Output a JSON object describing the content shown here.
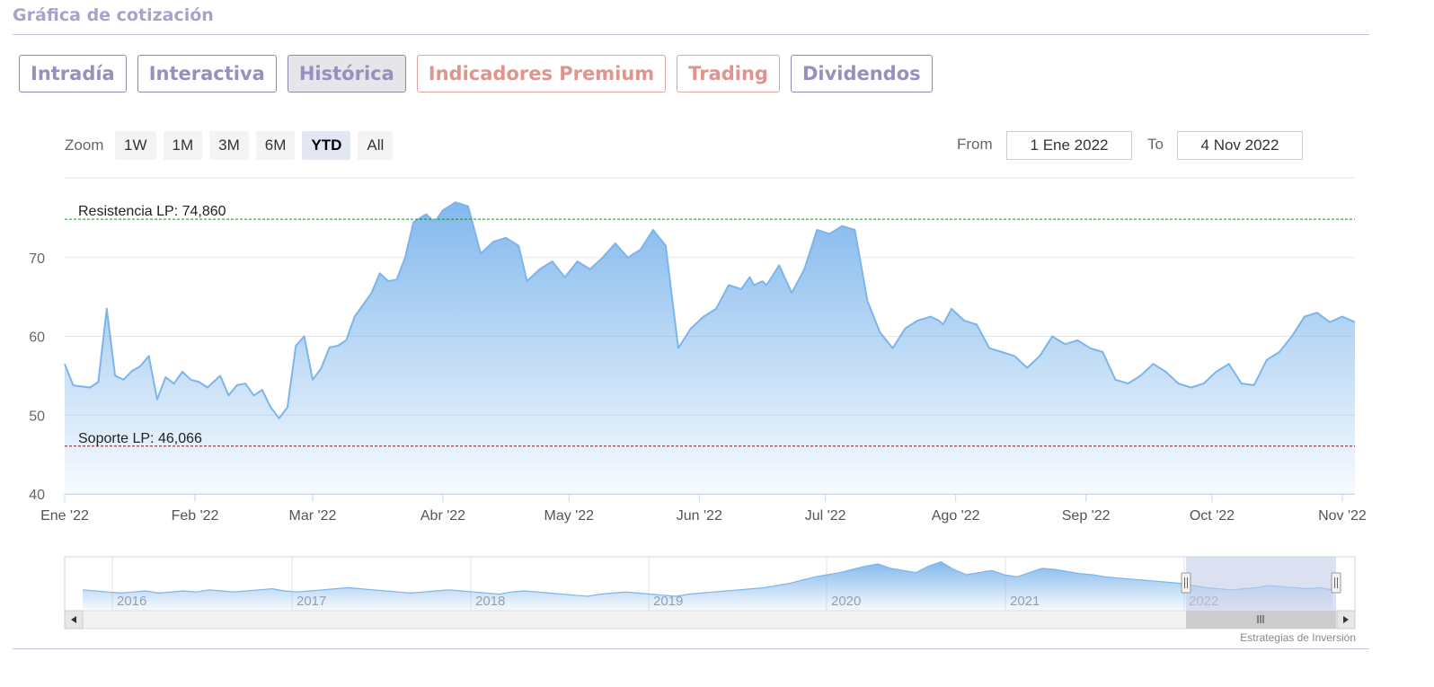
{
  "header": {
    "title": "Gráfica de cotización"
  },
  "tabs": [
    {
      "label": "Intradía",
      "style": "normal"
    },
    {
      "label": "Interactiva",
      "style": "normal"
    },
    {
      "label": "Histórica",
      "style": "active"
    },
    {
      "label": "Indicadores Premium",
      "style": "premium"
    },
    {
      "label": "Trading",
      "style": "premium"
    },
    {
      "label": "Dividendos",
      "style": "normal"
    }
  ],
  "zoom": {
    "label": "Zoom",
    "buttons": [
      "1W",
      "1M",
      "3M",
      "6M",
      "YTD",
      "All"
    ],
    "selected": "YTD"
  },
  "range": {
    "from_label": "From",
    "from_value": "1 Ene 2022",
    "to_label": "To",
    "to_value": "4 Nov 2022"
  },
  "colors": {
    "line": "#7cb5ec",
    "resistance": "#1a8a1a",
    "support": "#8b1a1a",
    "tab_text": "#9590bd",
    "premium_text": "#df958e",
    "navigator_mask": "#c5cde8"
  },
  "chart_data": {
    "type": "area",
    "x_start": "2022-01-01",
    "x_end": "2022-11-04",
    "ylim": [
      40,
      80
    ],
    "yticks": [
      40,
      50,
      60,
      70
    ],
    "ytick_labels": [
      "40",
      "50",
      "60",
      "70"
    ],
    "xtick_labels": [
      {
        "date": "2022-01-01",
        "label": "Ene '22"
      },
      {
        "date": "2022-02-01",
        "label": "Feb '22"
      },
      {
        "date": "2022-03-01",
        "label": "Mar '22"
      },
      {
        "date": "2022-04-01",
        "label": "Abr '22"
      },
      {
        "date": "2022-05-01",
        "label": "May '22"
      },
      {
        "date": "2022-06-01",
        "label": "Jun '22"
      },
      {
        "date": "2022-07-01",
        "label": "Jul '22"
      },
      {
        "date": "2022-08-01",
        "label": "Ago '22"
      },
      {
        "date": "2022-09-01",
        "label": "Sep '22"
      },
      {
        "date": "2022-10-01",
        "label": "Oct '22"
      },
      {
        "date": "2022-11-01",
        "label": "Nov '22"
      }
    ],
    "plot_lines": [
      {
        "label": "Resistencia LP: 74,860",
        "value": 74.86,
        "color": "#1a8a1a"
      },
      {
        "label": "Soporte LP: 46,066",
        "value": 46.066,
        "color": "#8b1a1a"
      }
    ],
    "series": [
      {
        "x": [
          "2022-01-01",
          "2022-01-03",
          "2022-01-04",
          "2022-01-07",
          "2022-01-09",
          "2022-01-11",
          "2022-01-13",
          "2022-01-15",
          "2022-01-17",
          "2022-01-19",
          "2022-01-21",
          "2022-01-23",
          "2022-01-25",
          "2022-01-27",
          "2022-01-29",
          "2022-01-31",
          "2022-02-02",
          "2022-02-04",
          "2022-02-07",
          "2022-02-09",
          "2022-02-11",
          "2022-02-13",
          "2022-02-15",
          "2022-02-17",
          "2022-02-19",
          "2022-02-21",
          "2022-02-23",
          "2022-02-25",
          "2022-02-27",
          "2022-03-01",
          "2022-03-03",
          "2022-03-05",
          "2022-03-07",
          "2022-03-09",
          "2022-03-11",
          "2022-03-13",
          "2022-03-15",
          "2022-03-17",
          "2022-03-19",
          "2022-03-21",
          "2022-03-23",
          "2022-03-25",
          "2022-03-28",
          "2022-03-30",
          "2022-04-01",
          "2022-04-04",
          "2022-04-07",
          "2022-04-10",
          "2022-04-13",
          "2022-04-16",
          "2022-04-19",
          "2022-04-21",
          "2022-04-24",
          "2022-04-27",
          "2022-04-30",
          "2022-05-03",
          "2022-05-06",
          "2022-05-09",
          "2022-05-12",
          "2022-05-15",
          "2022-05-18",
          "2022-05-21",
          "2022-05-24",
          "2022-05-27",
          "2022-05-30",
          "2022-06-02",
          "2022-06-05",
          "2022-06-08",
          "2022-06-11",
          "2022-06-13",
          "2022-06-14",
          "2022-06-16",
          "2022-06-17",
          "2022-06-20",
          "2022-06-23",
          "2022-06-26",
          "2022-06-29",
          "2022-07-02",
          "2022-07-05",
          "2022-07-08",
          "2022-07-11",
          "2022-07-14",
          "2022-07-17",
          "2022-07-20",
          "2022-07-23",
          "2022-07-26",
          "2022-07-28",
          "2022-07-29",
          "2022-07-31",
          "2022-08-03",
          "2022-08-06",
          "2022-08-09",
          "2022-08-12",
          "2022-08-15",
          "2022-08-18",
          "2022-08-21",
          "2022-08-24",
          "2022-08-27",
          "2022-08-30",
          "2022-09-02",
          "2022-09-05",
          "2022-09-08",
          "2022-09-11",
          "2022-09-14",
          "2022-09-17",
          "2022-09-20",
          "2022-09-23",
          "2022-09-26",
          "2022-09-29",
          "2022-10-02",
          "2022-10-05",
          "2022-10-08",
          "2022-10-11",
          "2022-10-14",
          "2022-10-17",
          "2022-10-20",
          "2022-10-23",
          "2022-10-26",
          "2022-10-29",
          "2022-11-01",
          "2022-11-04"
        ],
        "values": [
          56.5,
          53.8,
          53.7,
          53.5,
          54.2,
          63.5,
          55.0,
          54.5,
          55.6,
          56.2,
          57.5,
          52.0,
          54.8,
          54.0,
          55.5,
          54.5,
          54.2,
          53.5,
          55.0,
          52.5,
          53.8,
          54.0,
          52.5,
          53.2,
          51.0,
          49.6,
          51.0,
          58.8,
          60.0,
          54.5,
          55.9,
          58.6,
          58.8,
          59.5,
          62.5,
          64.0,
          65.5,
          68.0,
          67.0,
          67.2,
          70.0,
          74.5,
          75.5,
          74.5,
          76.0,
          77.0,
          76.5,
          70.5,
          72.0,
          72.5,
          71.5,
          67.0,
          68.5,
          69.5,
          67.5,
          69.5,
          68.5,
          70.0,
          71.8,
          70.0,
          71.0,
          73.5,
          71.5,
          58.5,
          61.0,
          62.5,
          63.5,
          66.5,
          66.0,
          67.5,
          66.5,
          67.0,
          66.5,
          69.0,
          65.5,
          68.5,
          73.5,
          73.0,
          74.0,
          73.5,
          64.5,
          60.5,
          58.5,
          61.0,
          62.0,
          62.5,
          62.0,
          61.5,
          63.5,
          62.0,
          61.5,
          58.5,
          58.0,
          57.5,
          56.0,
          57.5,
          60.0,
          59.0,
          59.5,
          58.5,
          58.0,
          54.5,
          54.0,
          55.0,
          56.5,
          55.5,
          54.0,
          53.5,
          54.0,
          55.5,
          56.5,
          54.0,
          53.8,
          57.0,
          58.0,
          60.0,
          62.5,
          63.0,
          61.8,
          62.5,
          61.8
        ]
      }
    ]
  },
  "navigator": {
    "year_labels": [
      "2016",
      "2017",
      "2018",
      "2019",
      "2020",
      "2021",
      "2022"
    ],
    "values": [
      56,
      55,
      54,
      53,
      54,
      55,
      53,
      54,
      55,
      54,
      56,
      55,
      54,
      55,
      56,
      57,
      55,
      54,
      55,
      56,
      57,
      58,
      57,
      56,
      55,
      54,
      53,
      54,
      55,
      56,
      55,
      54,
      53,
      52,
      54,
      55,
      54,
      53,
      52,
      51,
      50,
      52,
      53,
      54,
      53,
      52,
      51,
      50,
      52,
      53,
      54,
      55,
      56,
      57,
      58,
      60,
      62,
      65,
      68,
      70,
      72,
      75,
      78,
      80,
      76,
      74,
      72,
      78,
      82,
      75,
      70,
      72,
      74,
      70,
      68,
      72,
      76,
      75,
      73,
      71,
      70,
      68,
      67,
      66,
      65,
      64,
      63,
      62,
      60,
      58,
      57,
      56,
      57,
      58,
      60,
      59,
      58,
      57,
      58,
      56
    ],
    "credit": "Estrategias de Inversión"
  }
}
